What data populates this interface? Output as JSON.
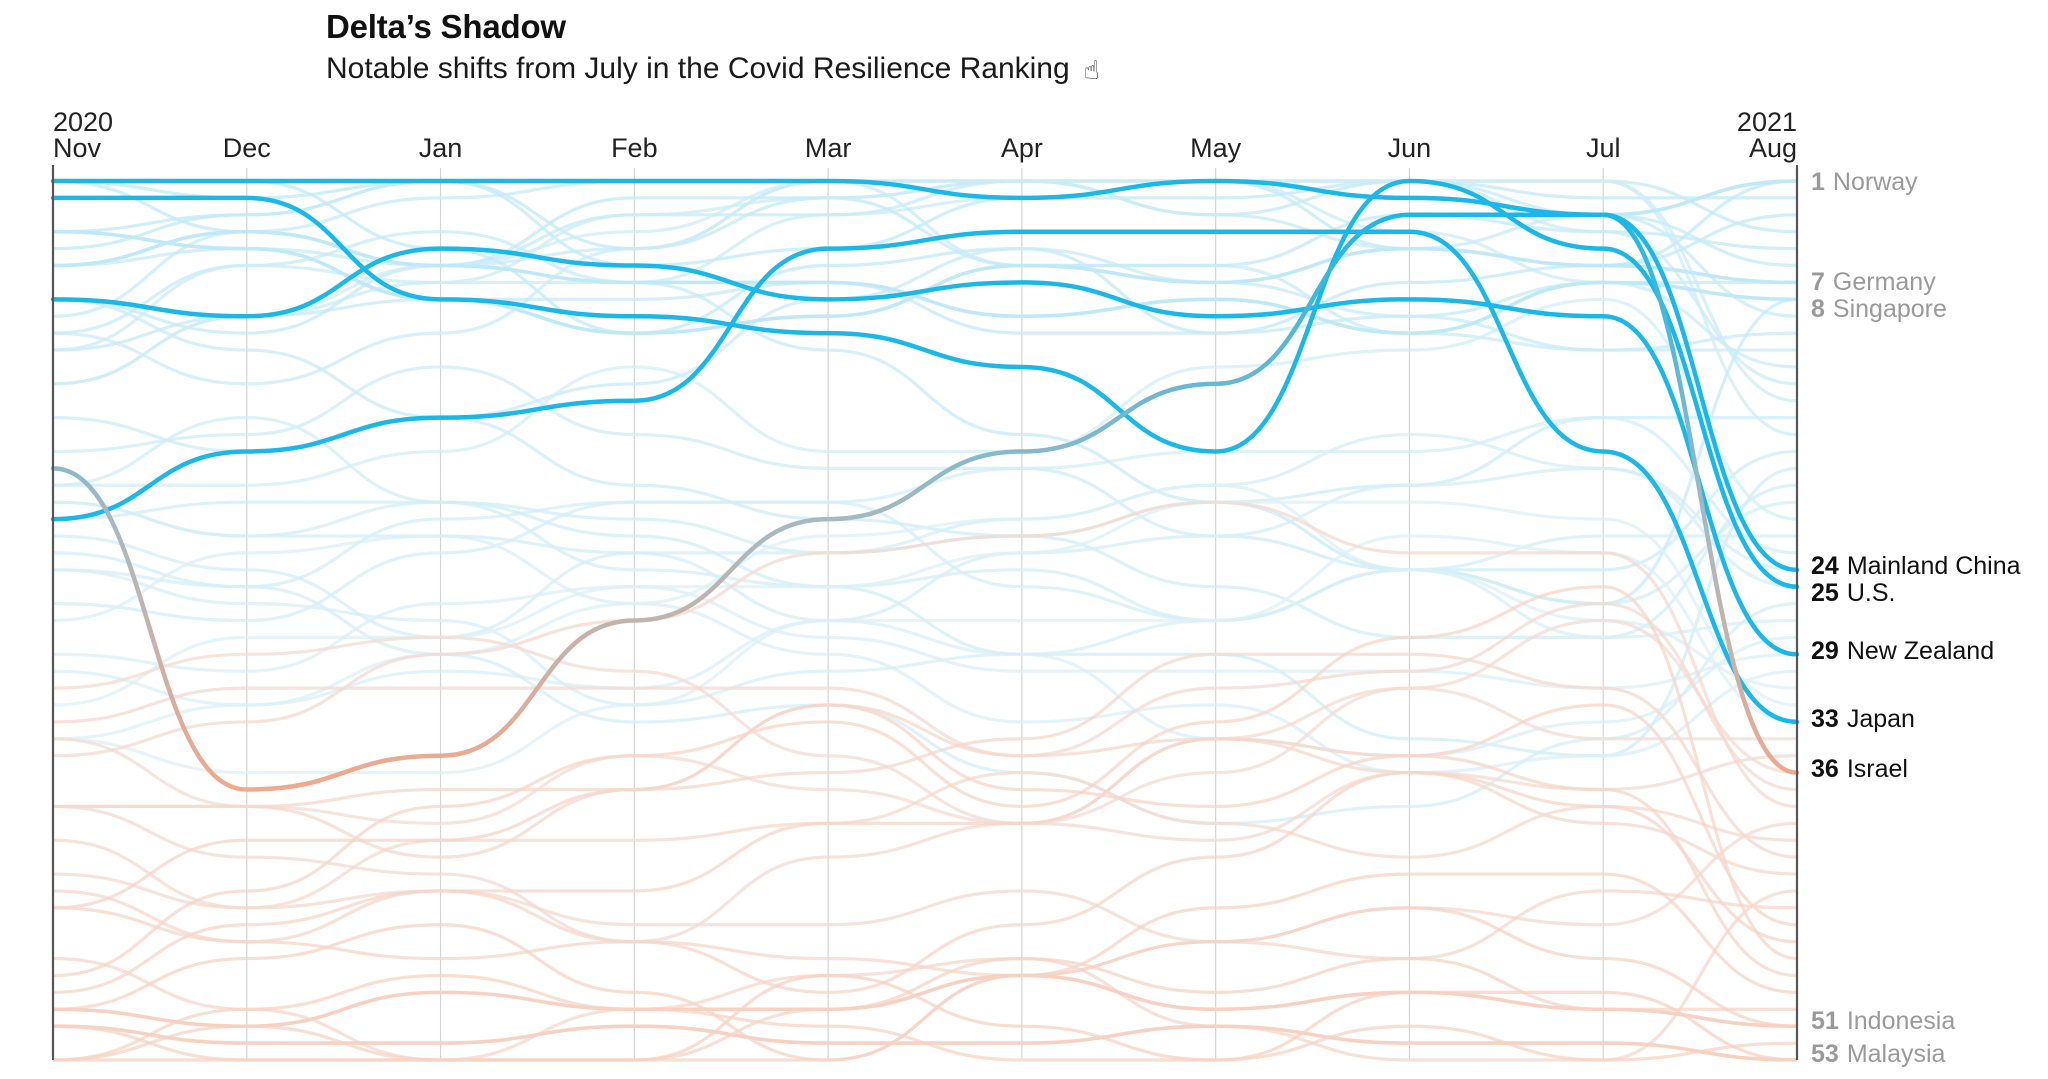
{
  "title": "Delta’s Shadow",
  "subtitle": "Notable shifts from July in the Covid Resilience Ranking",
  "subtitle_icon": "pointer-hand-icon",
  "chart_data": {
    "type": "line",
    "variant": "bump",
    "title": "Delta’s Shadow",
    "subtitle": "Notable shifts from July in the Covid Resilience Ranking",
    "x": [
      "Nov",
      "Dec",
      "Jan",
      "Feb",
      "Mar",
      "Apr",
      "May",
      "Jun",
      "Jul",
      "Aug"
    ],
    "year_labels": {
      "start": "2020",
      "end": "2021"
    },
    "y_axis": "rank",
    "ylim": [
      1,
      53
    ],
    "y_inverted": true,
    "grid": "vertical",
    "colors": {
      "highlight": "#1AB8E8",
      "background_top": "#BFE9F7",
      "background_bottom": "#F7D2C2",
      "israel_end": "#F2A88A",
      "label_dim": "#9A9A9A",
      "label_strong": "#111111",
      "gridline": "#D4D4D4",
      "axis": "#555555"
    },
    "series": [
      {
        "name": "Norway",
        "final_rank": 1,
        "highlight": false,
        "values": [
          1,
          1,
          1,
          1,
          1,
          2,
          1,
          2,
          3,
          1
        ]
      },
      {
        "name": "Germany",
        "final_rank": 7,
        "highlight": false,
        "values": [
          4,
          5,
          8,
          10,
          9,
          6,
          7,
          5,
          6,
          7
        ]
      },
      {
        "name": "Singapore",
        "final_rank": 8,
        "highlight": false,
        "values": [
          6,
          4,
          6,
          7,
          7,
          9,
          8,
          10,
          7,
          8
        ]
      },
      {
        "name": "Mainland China",
        "final_rank": 24,
        "highlight": true,
        "values": [
          1,
          1,
          1,
          1,
          1,
          2,
          1,
          2,
          3,
          24
        ]
      },
      {
        "name": "U.S.",
        "final_rank": 25,
        "highlight": true,
        "values": [
          2,
          2,
          8,
          9,
          10,
          12,
          17,
          1,
          5,
          25
        ]
      },
      {
        "name": "New Zealand",
        "final_rank": 29,
        "highlight": true,
        "values": [
          8,
          9,
          5,
          6,
          8,
          7,
          9,
          8,
          9,
          29
        ]
      },
      {
        "name": "Japan",
        "final_rank": 33,
        "highlight": true,
        "values": [
          21,
          17,
          15,
          14,
          5,
          4,
          4,
          4,
          17,
          33
        ]
      },
      {
        "name": "Israel",
        "final_rank": 36,
        "highlight": true,
        "values": [
          18,
          37,
          35,
          27,
          21,
          17,
          13,
          3,
          3,
          36
        ]
      },
      {
        "name": "Indonesia",
        "final_rank": 51,
        "highlight": false,
        "values": [
          50,
          51,
          49,
          50,
          50,
          48,
          50,
          49,
          50,
          51
        ]
      },
      {
        "name": "Malaysia",
        "final_rank": 53,
        "highlight": false,
        "values": [
          51,
          52,
          52,
          51,
          52,
          52,
          51,
          52,
          52,
          53
        ]
      }
    ],
    "labels": [
      {
        "rank": "1",
        "name": "Norway",
        "strong": false
      },
      {
        "rank": "7",
        "name": "Germany",
        "strong": false
      },
      {
        "rank": "8",
        "name": "Singapore",
        "strong": false
      },
      {
        "rank": "24",
        "name": "Mainland China",
        "strong": true
      },
      {
        "rank": "25",
        "name": "U.S.",
        "strong": true
      },
      {
        "rank": "29",
        "name": "New Zealand",
        "strong": true
      },
      {
        "rank": "33",
        "name": "Japan",
        "strong": true
      },
      {
        "rank": "36",
        "name": "Israel",
        "strong": true
      },
      {
        "rank": "51",
        "name": "Indonesia",
        "strong": false
      },
      {
        "rank": "53",
        "name": "Malaysia",
        "strong": false
      }
    ]
  }
}
